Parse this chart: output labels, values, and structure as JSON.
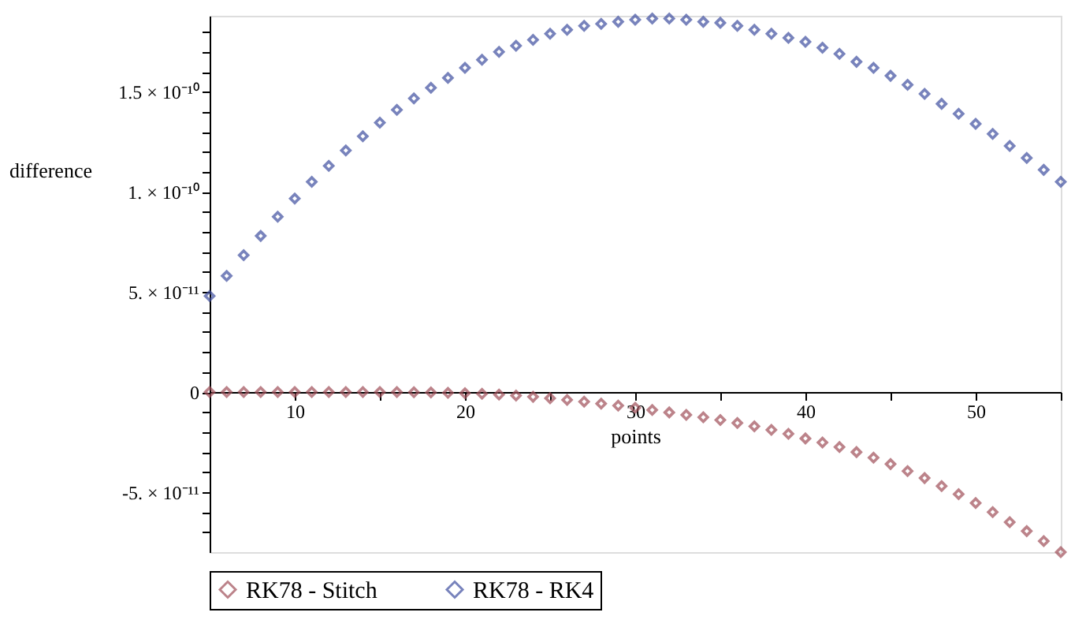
{
  "chart_data": {
    "type": "scatter",
    "xlabel": "points",
    "ylabel": "difference",
    "x": [
      5,
      6,
      7,
      8,
      9,
      10,
      11,
      12,
      13,
      14,
      15,
      16,
      17,
      18,
      19,
      20,
      21,
      22,
      23,
      24,
      25,
      26,
      27,
      28,
      29,
      30,
      31,
      32,
      33,
      34,
      35,
      36,
      37,
      38,
      39,
      40,
      41,
      42,
      43,
      44,
      45,
      46,
      47,
      48,
      49,
      50,
      51,
      52,
      53,
      54,
      55
    ],
    "series": [
      {
        "name": "RK78 - Stitch",
        "color": "#a0505a",
        "values": [
          0,
          0,
          0,
          0,
          0,
          0,
          0,
          0,
          0,
          0,
          0,
          0,
          -1e-13,
          -2e-13,
          -4e-13,
          -6e-13,
          -9e-13,
          -1.3e-12,
          -1.8e-12,
          -2.4e-12,
          -3.1e-12,
          -3.9e-12,
          -4.8e-12,
          -5.8e-12,
          -6.8e-12,
          -7.9e-12,
          -9e-12,
          -1.02e-11,
          -1.14e-11,
          -1.26e-11,
          -1.4e-11,
          -1.55e-11,
          -1.71e-11,
          -1.89e-11,
          -2.09e-11,
          -2.32e-11,
          -2.52e-11,
          -2.75e-11,
          -3e-11,
          -3.28e-11,
          -3.6e-11,
          -3.95e-11,
          -4.3e-11,
          -4.7e-11,
          -5.1e-11,
          -5.55e-11,
          -6e-11,
          -6.5e-11,
          -6.95e-11,
          -7.45e-11,
          -8e-11
        ]
      },
      {
        "name": "RK78 - RK4",
        "color": "#4050a0",
        "values": [
          4.8e-11,
          5.8e-11,
          6.84e-11,
          7.8e-11,
          8.76e-11,
          9.67e-11,
          1.05e-10,
          1.13e-10,
          1.207e-10,
          1.278e-10,
          1.346e-10,
          1.41e-10,
          1.467e-10,
          1.52e-10,
          1.57e-10,
          1.62e-10,
          1.66e-10,
          1.7e-10,
          1.73e-10,
          1.76e-10,
          1.79e-10,
          1.81e-10,
          1.83e-10,
          1.84e-10,
          1.85e-10,
          1.86e-10,
          1.866e-10,
          1.866e-10,
          1.86e-10,
          1.85e-10,
          1.845e-10,
          1.83e-10,
          1.81e-10,
          1.79e-10,
          1.77e-10,
          1.75e-10,
          1.72e-10,
          1.69e-10,
          1.65e-10,
          1.62e-10,
          1.58e-10,
          1.535e-10,
          1.49e-10,
          1.44e-10,
          1.39e-10,
          1.34e-10,
          1.29e-10,
          1.23e-10,
          1.17e-10,
          1.11e-10,
          1.05e-10
        ]
      }
    ],
    "xlim": [
      5,
      55
    ],
    "xticks": [
      10,
      {
        "value": 15,
        "label": null
      },
      20,
      {
        "value": 25,
        "label": null
      },
      30,
      {
        "value": 35,
        "label": null
      },
      40,
      {
        "value": 45,
        "label": null
      },
      50,
      {
        "value": 55,
        "label": null
      }
    ],
    "ylim": [
      -8e-11,
      1.88e-10
    ],
    "yticks": [
      {
        "value": -7e-11,
        "label": null
      },
      {
        "value": -6e-11,
        "label": null
      },
      {
        "value": -5e-11,
        "label": "-5. × 10⁻¹¹"
      },
      {
        "value": -4e-11,
        "label": null
      },
      {
        "value": -3e-11,
        "label": null
      },
      {
        "value": -2e-11,
        "label": null
      },
      {
        "value": -1e-11,
        "label": null
      },
      0,
      {
        "value": 1e-11,
        "label": null
      },
      {
        "value": 2e-11,
        "label": null
      },
      {
        "value": 3e-11,
        "label": null
      },
      {
        "value": 4e-11,
        "label": null
      },
      {
        "value": 5e-11,
        "label": "5. × 10⁻¹¹"
      },
      {
        "value": 6e-11,
        "label": null
      },
      {
        "value": 7e-11,
        "label": null
      },
      {
        "value": 8e-11,
        "label": null
      },
      {
        "value": 9e-11,
        "label": null
      },
      {
        "value": 1e-10,
        "label": "1. × 10⁻¹⁰"
      },
      {
        "value": 1.1e-10,
        "label": null
      },
      {
        "value": 1.2e-10,
        "label": null
      },
      {
        "value": 1.3e-10,
        "label": null
      },
      {
        "value": 1.4e-10,
        "label": null
      },
      {
        "value": 1.5e-10,
        "label": "1.5 × 10⁻¹⁰"
      },
      {
        "value": 1.6e-10,
        "label": null
      },
      {
        "value": 1.7e-10,
        "label": null
      },
      {
        "value": 1.8e-10,
        "label": null
      }
    ],
    "marker": "diamond",
    "legend": "bottom",
    "grid": false
  }
}
